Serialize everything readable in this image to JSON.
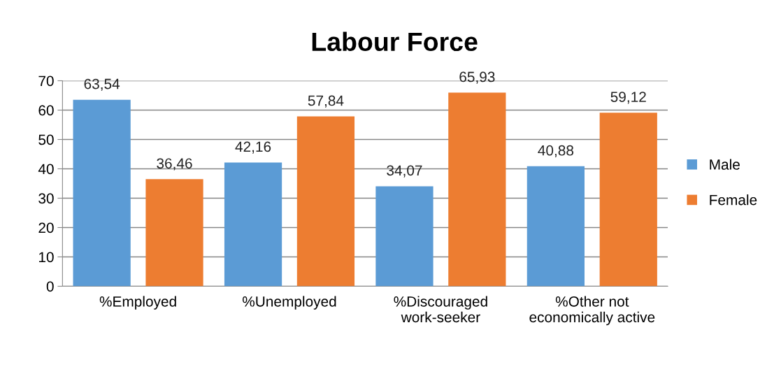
{
  "chart_data": {
    "type": "bar",
    "title": "Labour Force",
    "categories": [
      "%Employed",
      "%Unemployed",
      "%Discouraged\nwork-seeker",
      "%Other not\neconomically active"
    ],
    "series": [
      {
        "name": "Male",
        "color": "#5b9bd5",
        "values": [
          63.54,
          42.16,
          34.07,
          40.88
        ],
        "value_labels": [
          "63,54",
          "42,16",
          "34,07",
          "40,88"
        ]
      },
      {
        "name": "Female",
        "color": "#ed7d31",
        "values": [
          36.46,
          57.84,
          65.93,
          59.12
        ],
        "value_labels": [
          "36,46",
          "57,84",
          "65,93",
          "59,12"
        ]
      }
    ],
    "ylim": [
      0,
      70
    ],
    "yticks": [
      0,
      10,
      20,
      30,
      40,
      50,
      60,
      70
    ],
    "grid": "y",
    "legend": "right"
  }
}
